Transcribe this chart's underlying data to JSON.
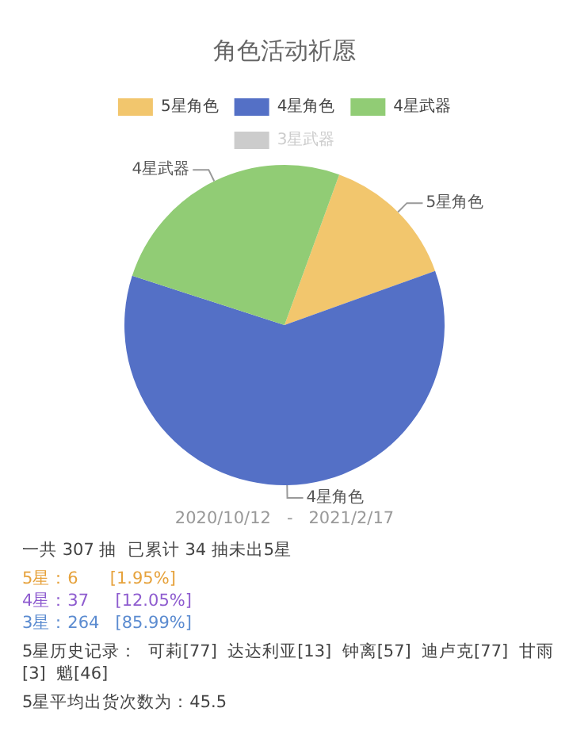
{
  "chart_data": {
    "type": "pie",
    "title": "角色活动祈愿",
    "categories": [
      "5星角色",
      "4星角色",
      "4星武器",
      "3星武器"
    ],
    "values": [
      13.95,
      60.47,
      25.58,
      null
    ],
    "colors": [
      "#f2c66d",
      "#5470c6",
      "#91cc75",
      "#cccccc"
    ],
    "legend": "top",
    "annotations": [
      "2020/10/12   -   2021/2/17",
      "一共 307 抽  已累计 34 抽未出5星",
      "5星：6      [1.95%]",
      "4星：37     [12.05%]",
      "3星：264   [85.99%]",
      "5星历史记录：  可莉[77]  达达利亚[13]  钟离[57]  迪卢克[77]  甘雨[3]  魈[46]",
      "5星平均出货次数为：45.5"
    ]
  }
}
